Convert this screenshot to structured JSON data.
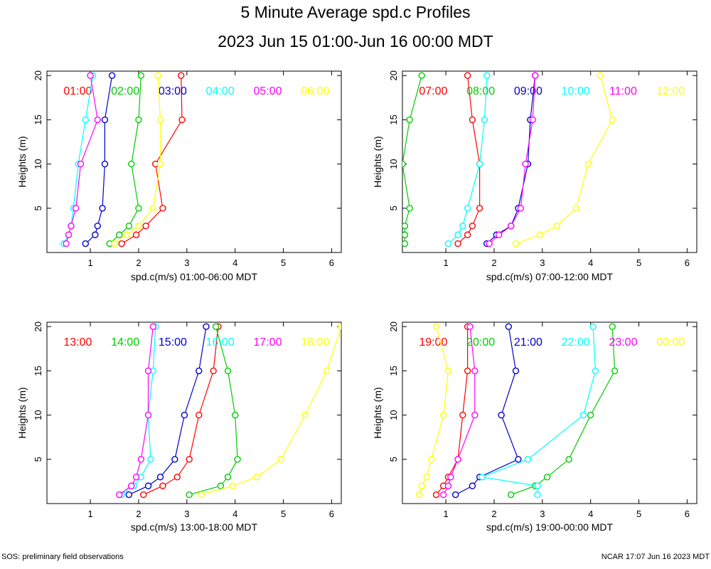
{
  "title": "5 Minute Average spd.c Profiles",
  "subtitle": "2023 Jun 15 01:00-Jun 16 00:00 MDT",
  "footer_left": "SOS: preliminary field observations",
  "footer_right": "NCAR 17:07 Jun 16 2023 MDT",
  "chart_data": [
    {
      "type": "line",
      "xlabel": "spd.c(m/s) 01:00-06:00 MDT",
      "ylabel": "Heights (m)",
      "xlim": [
        0.1,
        6.2
      ],
      "ylim": [
        0,
        20.5
      ],
      "xticks": [
        "1",
        "2",
        "3",
        "4",
        "5",
        "6"
      ],
      "yticks": [
        "5",
        "10",
        "15",
        "20"
      ],
      "heights": [
        1,
        2,
        3,
        5,
        10,
        15,
        20
      ],
      "series": [
        {
          "name": "01:00",
          "color": "#ff0000",
          "values": [
            1.65,
            1.95,
            2.15,
            2.5,
            2.35,
            2.9,
            2.88
          ]
        },
        {
          "name": "02:00",
          "color": "#00cc00",
          "values": [
            1.4,
            1.6,
            1.8,
            2.0,
            1.85,
            2.0,
            2.05
          ]
        },
        {
          "name": "03:00",
          "color": "#0000cc",
          "values": [
            0.9,
            1.1,
            1.15,
            1.25,
            1.3,
            1.3,
            1.45
          ]
        },
        {
          "name": "04:00",
          "color": "#00ffff",
          "values": [
            0.45,
            0.55,
            0.6,
            0.65,
            0.75,
            0.9,
            1.05
          ]
        },
        {
          "name": "05:00",
          "color": "#ff00ff",
          "values": [
            0.5,
            0.55,
            0.6,
            0.7,
            0.8,
            1.15,
            1.0
          ]
        },
        {
          "name": "06:00",
          "color": "#ffff00",
          "values": [
            1.5,
            1.75,
            2.0,
            2.3,
            2.45,
            2.45,
            2.4
          ]
        }
      ]
    },
    {
      "type": "line",
      "xlabel": "spd.c(m/s) 07:00-12:00 MDT",
      "ylabel": "Heights (m)",
      "xlim": [
        0.1,
        6.2
      ],
      "ylim": [
        0,
        20.5
      ],
      "xticks": [
        "1",
        "2",
        "3",
        "4",
        "5",
        "6"
      ],
      "yticks": [
        "5",
        "10",
        "15",
        "20"
      ],
      "heights": [
        1,
        2,
        3,
        5,
        10,
        15,
        20
      ],
      "series": [
        {
          "name": "07:00",
          "color": "#ff0000",
          "values": [
            1.25,
            1.45,
            1.55,
            1.7,
            1.7,
            1.55,
            1.45
          ]
        },
        {
          "name": "08:00",
          "color": "#00cc00",
          "values": [
            0.15,
            0.15,
            0.15,
            0.25,
            0.1,
            0.25,
            0.5
          ]
        },
        {
          "name": "09:00",
          "color": "#0000cc",
          "values": [
            1.85,
            2.05,
            2.35,
            2.5,
            2.7,
            2.75,
            2.85
          ]
        },
        {
          "name": "10:00",
          "color": "#00ffff",
          "values": [
            1.05,
            1.25,
            1.35,
            1.45,
            1.7,
            1.8,
            1.85
          ]
        },
        {
          "name": "11:00",
          "color": "#ff00ff",
          "values": [
            1.9,
            2.1,
            2.35,
            2.55,
            2.65,
            2.8,
            2.85
          ]
        },
        {
          "name": "12:00",
          "color": "#ffff00",
          "values": [
            2.45,
            2.95,
            3.3,
            3.7,
            3.95,
            4.45,
            4.2
          ]
        }
      ]
    },
    {
      "type": "line",
      "xlabel": "spd.c(m/s) 13:00-18:00 MDT",
      "ylabel": "Heights (m)",
      "xlim": [
        0.1,
        6.2
      ],
      "ylim": [
        0,
        20.5
      ],
      "xticks": [
        "1",
        "2",
        "3",
        "4",
        "5",
        "6"
      ],
      "yticks": [
        "5",
        "10",
        "15",
        "20"
      ],
      "heights": [
        1,
        2,
        3,
        5,
        10,
        15,
        20
      ],
      "series": [
        {
          "name": "13:00",
          "color": "#ff0000",
          "values": [
            2.1,
            2.5,
            2.8,
            3.05,
            3.25,
            3.55,
            3.65
          ]
        },
        {
          "name": "14:00",
          "color": "#00cc00",
          "values": [
            3.05,
            3.7,
            3.85,
            4.05,
            4.0,
            3.85,
            3.6
          ]
        },
        {
          "name": "15:00",
          "color": "#0000cc",
          "values": [
            1.8,
            2.2,
            2.45,
            2.75,
            2.95,
            3.25,
            3.4
          ]
        },
        {
          "name": "16:00",
          "color": "#00ffff",
          "values": [
            1.65,
            1.9,
            2.05,
            2.25,
            2.2,
            2.3,
            2.35
          ]
        },
        {
          "name": "17:00",
          "color": "#ff00ff",
          "values": [
            1.6,
            1.85,
            1.95,
            2.05,
            2.2,
            2.2,
            2.3
          ]
        },
        {
          "name": "18:00",
          "color": "#ffff00",
          "values": [
            3.3,
            3.95,
            4.45,
            4.95,
            5.45,
            5.9,
            6.2
          ]
        }
      ]
    },
    {
      "type": "line",
      "xlabel": "spd.c(m/s) 19:00-00:00 MDT",
      "ylabel": "Heights (m)",
      "xlim": [
        0.1,
        6.2
      ],
      "ylim": [
        0,
        20.5
      ],
      "xticks": [
        "1",
        "2",
        "3",
        "4",
        "5",
        "6"
      ],
      "yticks": [
        "5",
        "10",
        "15",
        "20"
      ],
      "heights": [
        1,
        2,
        3,
        5,
        10,
        15,
        20
      ],
      "series": [
        {
          "name": "19:00",
          "color": "#ff0000",
          "values": [
            0.8,
            0.95,
            1.05,
            1.25,
            1.35,
            1.45,
            1.45
          ]
        },
        {
          "name": "20:00",
          "color": "#00cc00",
          "values": [
            2.35,
            2.85,
            3.1,
            3.55,
            4.0,
            4.5,
            4.45
          ]
        },
        {
          "name": "21:00",
          "color": "#0000cc",
          "values": [
            1.2,
            1.55,
            1.7,
            2.5,
            2.15,
            2.45,
            2.3
          ]
        },
        {
          "name": "22:00",
          "color": "#00ffff",
          "values": [
            2.9,
            2.9,
            1.75,
            2.7,
            3.85,
            4.1,
            4.05
          ]
        },
        {
          "name": "23:00",
          "color": "#ff00ff",
          "values": [
            0.95,
            1.05,
            1.1,
            1.25,
            1.6,
            1.6,
            1.5
          ]
        },
        {
          "name": "00:00",
          "color": "#ffff00",
          "values": [
            0.45,
            0.5,
            0.6,
            0.7,
            0.95,
            1.05,
            0.8
          ]
        }
      ]
    }
  ]
}
